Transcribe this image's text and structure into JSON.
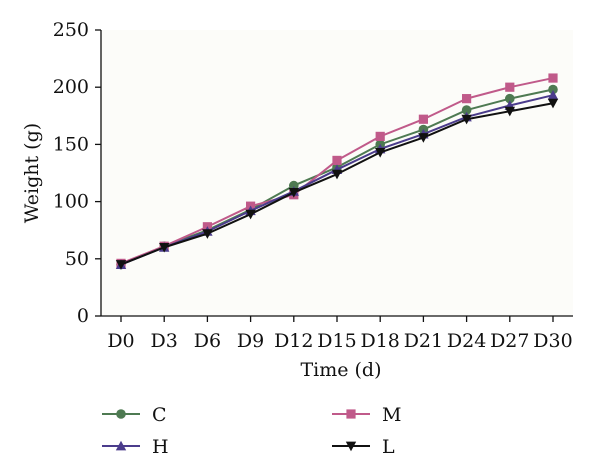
{
  "chart_data": {
    "type": "line",
    "title": "",
    "xlabel": "Time (d)",
    "ylabel": "Weight (g)",
    "ylim": [
      0,
      250
    ],
    "yticks": [
      0,
      50,
      100,
      150,
      200,
      250
    ],
    "categories": [
      "D0",
      "D3",
      "D6",
      "D9",
      "D12",
      "D15",
      "D18",
      "D21",
      "D24",
      "D27",
      "D30"
    ],
    "grid": false,
    "legend_position": "bottom",
    "series": [
      {
        "name": "C",
        "color": "#4e7a52",
        "marker": "circle",
        "values": [
          45,
          61,
          75,
          93,
          114,
          130,
          150,
          163,
          180,
          190,
          198
        ]
      },
      {
        "name": "M",
        "color": "#c05a8a",
        "marker": "square",
        "values": [
          46,
          61,
          78,
          96,
          106,
          136,
          157,
          172,
          190,
          200,
          208
        ]
      },
      {
        "name": "H",
        "color": "#4b3c8c",
        "marker": "triangle-up",
        "values": [
          45,
          60,
          74,
          92,
          109,
          128,
          146,
          159,
          174,
          184,
          193
        ]
      },
      {
        "name": "L",
        "color": "#111111",
        "marker": "triangle-down",
        "values": [
          45,
          60,
          72,
          89,
          108,
          124,
          143,
          156,
          172,
          179,
          186
        ]
      }
    ]
  }
}
